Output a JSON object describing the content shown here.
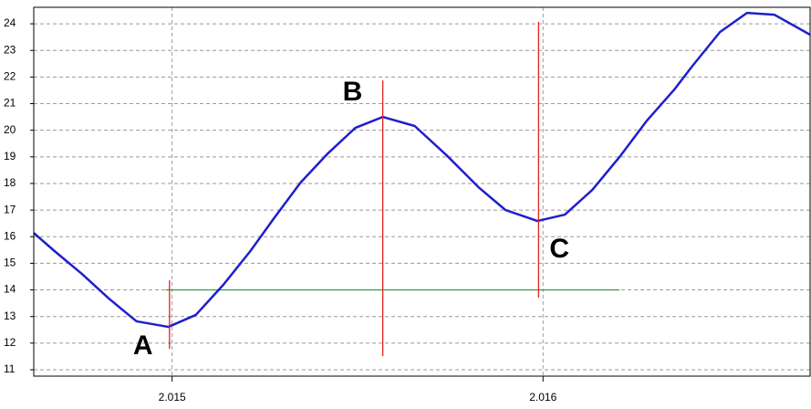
{
  "chart_data": {
    "type": "line",
    "x": [
      2.014627,
      2.014683,
      2.014757,
      2.01483,
      2.014904,
      2.01499,
      2.015064,
      2.015138,
      2.015211,
      2.015273,
      2.015346,
      2.01542,
      2.015494,
      2.015568,
      2.015654,
      2.01574,
      2.015826,
      2.015899,
      2.015985,
      2.016059,
      2.016133,
      2.016206,
      2.01628,
      2.016354,
      2.016403,
      2.016477,
      2.01655,
      2.016624,
      2.01672
    ],
    "series": [
      {
        "color": "#1f1fcc",
        "values": [
          16.14,
          15.46,
          14.6,
          13.67,
          12.82,
          12.61,
          13.06,
          14.19,
          15.46,
          16.66,
          18.03,
          19.13,
          20.09,
          20.5,
          20.16,
          19.06,
          17.86,
          17.0,
          16.59,
          16.83,
          17.76,
          18.99,
          20.36,
          21.53,
          22.42,
          23.69,
          24.41,
          24.34,
          23.59
        ]
      }
    ],
    "markers": [
      {
        "label": "A",
        "x": 2.014993,
        "y1": 14.36,
        "y2": 11.79,
        "color": "#e02020"
      },
      {
        "label": "B",
        "x": 2.015568,
        "y1": 21.87,
        "y2": 11.51,
        "color": "#e02020"
      },
      {
        "label": "C",
        "x": 2.015988,
        "y1": 24.07,
        "y2": 13.71,
        "color": "#e02020"
      }
    ],
    "level": {
      "x1": 2.014983,
      "x2": 2.016206,
      "y": 14,
      "color": "#2a9a2a"
    },
    "xlim": [
      2.014627,
      2.01672
    ],
    "ylim": [
      10.76,
      24.62
    ],
    "xticks": [
      2.015,
      2.016
    ],
    "yticks": [
      11,
      12,
      13,
      14,
      15,
      16,
      17,
      18,
      19,
      20,
      21,
      22,
      23,
      24
    ],
    "grid": true
  }
}
